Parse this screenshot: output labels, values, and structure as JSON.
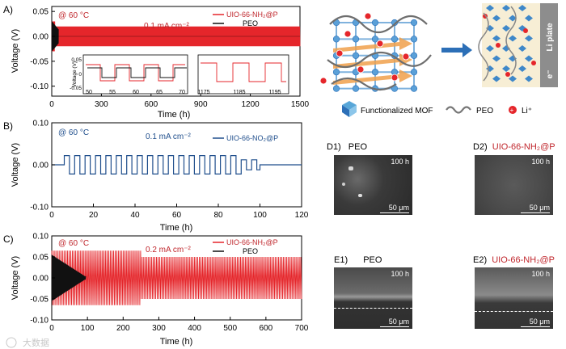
{
  "colors": {
    "red": "#e5262b",
    "black": "#111111",
    "blue": "#1f4e8c",
    "textRed": "#c0272d"
  },
  "chart_data": [
    {
      "type": "line",
      "panel": "A)",
      "condition": "@ 60 °C",
      "current": "0.1 mA cm⁻²",
      "legend": [
        "UIO-66-NH₂@P",
        "PEO"
      ],
      "xlabel": "Time (h)",
      "ylabel": "Voltage (V)",
      "xlim": [
        0,
        1500
      ],
      "ylim": [
        -0.12,
        0.06
      ],
      "xticks": [
        "0",
        "300",
        "600",
        "900",
        "1200",
        "1500"
      ],
      "yticks": [
        "0.05",
        "0.00",
        "-0.05",
        "-0.10"
      ],
      "series": [
        {
          "name": "UIO-66-NH₂@P",
          "x_range": [
            0,
            1500
          ],
          "amplitude": 0.02
        },
        {
          "name": "PEO",
          "x_range": [
            0,
            40
          ],
          "amplitude": 0.025
        }
      ],
      "inset1": {
        "ylabel": "Voltage (V)",
        "xticks": [
          "50",
          "55",
          "60",
          "65",
          "70"
        ],
        "yticks": [
          "0.05",
          "0",
          "-0.05"
        ]
      },
      "inset2": {
        "xticks": [
          "1175",
          "1185",
          "1195"
        ]
      }
    },
    {
      "type": "line",
      "panel": "B)",
      "condition": "@ 60 °C",
      "current": "0.1 mA cm⁻²",
      "legend": [
        "UIO-66-NO₂@P"
      ],
      "xlabel": "Time (h)",
      "ylabel": "Voltage (V)",
      "xlim": [
        0,
        120
      ],
      "ylim": [
        -0.1,
        0.1
      ],
      "xticks": [
        "0",
        "20",
        "40",
        "60",
        "80",
        "100",
        "120"
      ],
      "yticks": [
        "0.10",
        "0.00",
        "-0.10"
      ],
      "series": [
        {
          "name": "UIO-66-NO₂@P",
          "x_range": [
            0,
            100
          ],
          "amplitude": 0.025
        }
      ]
    },
    {
      "type": "line",
      "panel": "C)",
      "condition": "@ 60 °C",
      "current": "0.2 mA cm⁻²",
      "legend": [
        "UIO-66-NH₂@P",
        "PEO"
      ],
      "xlabel": "Time (h)",
      "ylabel": "Voltage (V)",
      "xlim": [
        0,
        700
      ],
      "ylim": [
        -0.1,
        0.1
      ],
      "xticks": [
        "0",
        "100",
        "200",
        "300",
        "400",
        "500",
        "600",
        "700"
      ],
      "yticks": [
        "0.10",
        "0.05",
        "0.00",
        "-0.05",
        "-0.10"
      ],
      "series": [
        {
          "name": "UIO-66-NH₂@P",
          "x_range": [
            0,
            700
          ],
          "amplitude": 0.06
        },
        {
          "name": "PEO",
          "x_range": [
            0,
            95
          ],
          "amplitude": 0.05
        }
      ]
    }
  ],
  "schematic": {
    "li_plate": "Li plate",
    "electron": "e⁻",
    "legend": {
      "mof": "Functionalized MOF",
      "peo": "PEO",
      "li": "Li⁺"
    }
  },
  "sem": [
    {
      "panel": "D1)",
      "label": "PEO",
      "time": "100 h",
      "scale": "50 μm"
    },
    {
      "panel": "D2)",
      "label": "UIO-66-NH₂@P",
      "time": "100 h",
      "scale": "50 μm"
    },
    {
      "panel": "E1)",
      "label": "PEO",
      "time": "100 h",
      "scale": "50 μm"
    },
    {
      "panel": "E2)",
      "label": "UIO-66-NH₂@P",
      "time": "100 h",
      "scale": "50 μm"
    }
  ],
  "watermark": "大数据"
}
